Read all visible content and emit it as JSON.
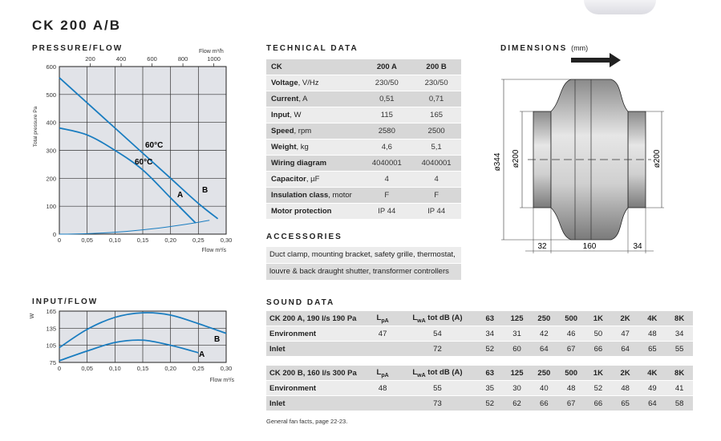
{
  "title": "CK 200 A/B",
  "pressure_flow": {
    "heading": "PRESSURE/FLOW",
    "top_axis_label": "Flow m³/h",
    "top_ticks": [
      "200",
      "400",
      "600",
      "800",
      "1000"
    ],
    "y_label": "Total pressure Pa",
    "y_ticks": [
      "0",
      "100",
      "200",
      "300",
      "400",
      "500",
      "600"
    ],
    "x_ticks": [
      "0",
      "0,05",
      "0,10",
      "0,15",
      "0,20",
      "0,25",
      "0,30"
    ],
    "x_label": "Flow m³/s",
    "labels": {
      "temp_b": "60°C",
      "temp_a": "60°C",
      "curve_a": "A",
      "curve_b": "B"
    }
  },
  "input_flow": {
    "heading": "INPUT/FLOW",
    "y_label": "W",
    "y_ticks": [
      "75",
      "105",
      "135",
      "165"
    ],
    "x_ticks": [
      "0",
      "0,05",
      "0,10",
      "0,15",
      "0,20",
      "0,25",
      "0,30"
    ],
    "x_label": "Flow m³/s",
    "labels": {
      "curve_a": "A",
      "curve_b": "B"
    }
  },
  "chart_data": [
    {
      "type": "line",
      "title": "PRESSURE/FLOW",
      "xlabel": "Flow m³/s",
      "ylabel": "Total pressure Pa",
      "xlim": [
        0,
        0.3
      ],
      "ylim": [
        0,
        600
      ],
      "secondary_x": {
        "label": "Flow m³/h",
        "ticks": [
          200,
          400,
          600,
          800,
          1000
        ]
      },
      "grid": true,
      "series": [
        {
          "name": "A",
          "x": [
            0,
            0.05,
            0.1,
            0.15,
            0.2,
            0.245
          ],
          "y": [
            380,
            355,
            300,
            230,
            130,
            40
          ]
        },
        {
          "name": "B",
          "x": [
            0,
            0.05,
            0.1,
            0.15,
            0.2,
            0.25,
            0.285
          ],
          "y": [
            560,
            470,
            380,
            290,
            200,
            110,
            55
          ]
        }
      ],
      "annotations": [
        "60°C",
        "60°C"
      ]
    },
    {
      "type": "line",
      "title": "INPUT/FLOW",
      "xlabel": "Flow m³/s",
      "ylabel": "W",
      "xlim": [
        0,
        0.3
      ],
      "ylim": [
        75,
        165
      ],
      "grid": true,
      "series": [
        {
          "name": "A",
          "x": [
            0,
            0.05,
            0.1,
            0.15,
            0.2,
            0.25
          ],
          "y": [
            78,
            95,
            110,
            114,
            105,
            92
          ]
        },
        {
          "name": "B",
          "x": [
            0,
            0.05,
            0.1,
            0.15,
            0.2,
            0.25,
            0.3
          ],
          "y": [
            101,
            133,
            154,
            162,
            158,
            143,
            126
          ]
        }
      ]
    }
  ],
  "technical_data": {
    "heading": "TECHNICAL DATA",
    "header": {
      "label": "CK",
      "a": "200 A",
      "b": "200 B"
    },
    "rows": [
      {
        "label": "Voltage",
        "unit": ", V/Hz",
        "a": "230/50",
        "b": "230/50"
      },
      {
        "label": "Current",
        "unit": ", A",
        "a": "0,51",
        "b": "0,71"
      },
      {
        "label": "Input",
        "unit": ", W",
        "a": "115",
        "b": "165"
      },
      {
        "label": "Speed",
        "unit": ", rpm",
        "a": "2580",
        "b": "2500"
      },
      {
        "label": "Weight",
        "unit": ", kg",
        "a": "4,6",
        "b": "5,1"
      },
      {
        "label": "Wiring diagram",
        "unit": "",
        "a": "4040001",
        "b": "4040001"
      },
      {
        "label": "Capacitor",
        "unit": ", µF",
        "a": "4",
        "b": "4"
      },
      {
        "label": "Insulation class",
        "unit": ", motor",
        "a": "F",
        "b": "F"
      },
      {
        "label": "Motor protection",
        "unit": "",
        "a": "IP 44",
        "b": "IP 44"
      }
    ]
  },
  "dimensions": {
    "heading": "DIMENSIONS",
    "unit": "(mm)",
    "d_outer": "ø344",
    "d_left": "ø200",
    "d_right": "ø200",
    "len_left": "32",
    "len_mid": "160",
    "len_right": "34"
  },
  "accessories": {
    "heading": "ACCESSORIES",
    "lines": [
      "Duct clamp, mounting bracket, safety grille, thermostat,",
      "louvre & back draught shutter, transformer controllers"
    ]
  },
  "sound_data": {
    "heading": "SOUND DATA",
    "bands": [
      "63",
      "125",
      "250",
      "500",
      "1K",
      "2K",
      "4K",
      "8K"
    ],
    "blocks": [
      {
        "title": "CK 200 A, 190 l/s 190 Pa",
        "lpa_head": "pA",
        "lwa_head": "wA",
        "tot_head": "tot dB (A)",
        "rows": [
          {
            "label": "Environment",
            "lpa": "47",
            "tot": "54",
            "vals": [
              "34",
              "31",
              "42",
              "46",
              "50",
              "47",
              "48",
              "34"
            ]
          },
          {
            "label": "Inlet",
            "lpa": "",
            "tot": "72",
            "vals": [
              "52",
              "60",
              "64",
              "67",
              "66",
              "64",
              "65",
              "55"
            ]
          }
        ]
      },
      {
        "title": "CK 200 B, 160 l/s 300 Pa",
        "lpa_head": "pA",
        "lwa_head": "wA",
        "tot_head": "tot dB (A)",
        "rows": [
          {
            "label": "Environment",
            "lpa": "48",
            "tot": "55",
            "vals": [
              "35",
              "30",
              "40",
              "48",
              "52",
              "48",
              "49",
              "41"
            ]
          },
          {
            "label": "Inlet",
            "lpa": "",
            "tot": "73",
            "vals": [
              "52",
              "62",
              "66",
              "67",
              "66",
              "65",
              "64",
              "58"
            ]
          }
        ]
      }
    ],
    "footnote": "General fan facts, page 22-23."
  },
  "colors": {
    "curve": "#1a7dc0",
    "grid": "#333333",
    "chart_bg": "#e1e3e8",
    "table_dark": "#d7d7d7",
    "table_light": "#ececec"
  }
}
